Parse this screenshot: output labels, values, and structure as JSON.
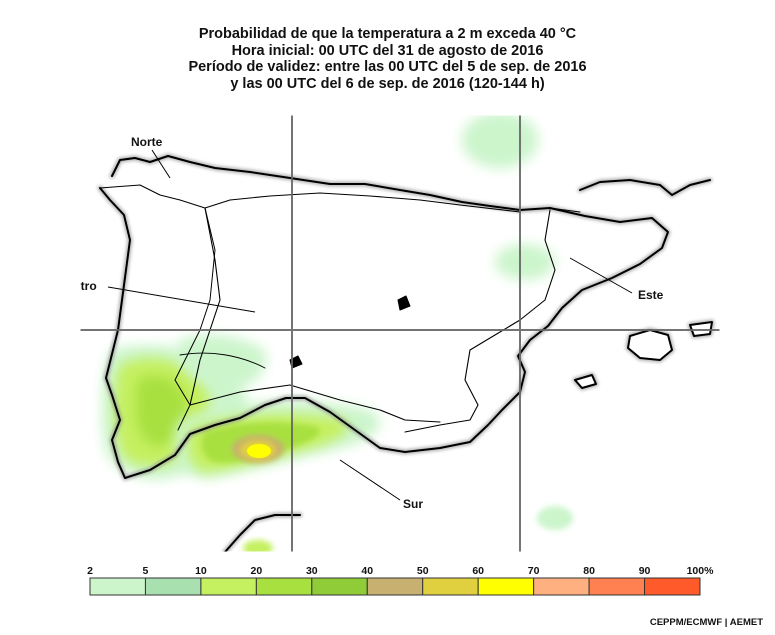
{
  "title_lines": [
    "Probabilidad de que la temperatura a 2 m exceda 40 °C",
    "Hora inicial: 00 UTC del 31 de agosto de 2016",
    "Período de validez: entre las 00 UTC del 5 de sep. de 2016",
    "y las 00 UTC del 6 de sep. de 2016 (120-144 h)"
  ],
  "regions": {
    "north": "Norte",
    "center": "Centro",
    "east": "Este",
    "south": "Sur"
  },
  "legend": {
    "ticks": [
      "2",
      "5",
      "10",
      "20",
      "30",
      "40",
      "50",
      "60",
      "70",
      "80",
      "90",
      "100%"
    ],
    "colors": [
      "#ccf5cc",
      "#a8e0b0",
      "#c5f060",
      "#a8e040",
      "#90cc38",
      "#c8b070",
      "#e0d040",
      "#ffff00",
      "#ffb080",
      "#ff8050",
      "#ff5a2a"
    ]
  },
  "credit": "CEPPM/ECMWF | AEMET",
  "colors": {
    "land": "#ffffff",
    "coast": "#000000",
    "grid": "#666666"
  }
}
